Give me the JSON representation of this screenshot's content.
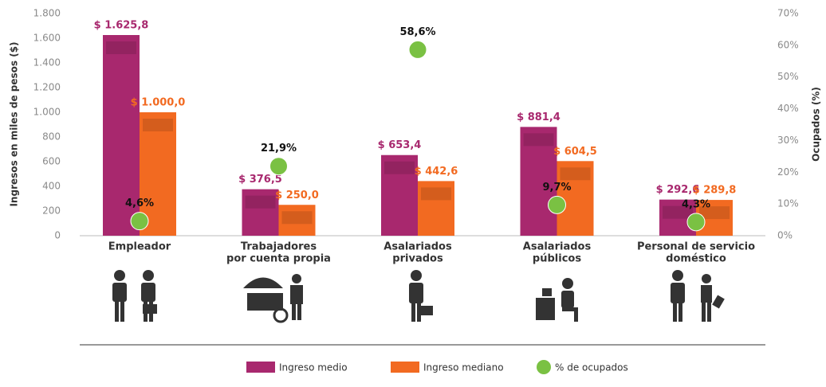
{
  "chart_data": {
    "type": "bar",
    "y_label": "Ingresos en miles de pesos ($)",
    "y2_label": "Ocupados (%)",
    "categories": [
      [
        "Empleador"
      ],
      [
        "Trabajadores",
        "por cuenta propia"
      ],
      [
        "Asalariados",
        "privados"
      ],
      [
        "Asalariados",
        "públicos"
      ],
      [
        "Personal de servicio",
        "doméstico"
      ]
    ],
    "series": [
      {
        "name": "Ingreso medio",
        "color": "#a8286e",
        "type": "bar",
        "values": [
          1625.8,
          376.5,
          653.4,
          881.4,
          292.6
        ],
        "value_labels": [
          "$ 1.625,8",
          "$ 376,5",
          "$ 653,4",
          "$ 881,4",
          "$ 292,6"
        ]
      },
      {
        "name": "Ingreso mediano",
        "color": "#f26a21",
        "type": "bar",
        "values": [
          1000.0,
          250.0,
          442.6,
          604.5,
          289.8
        ],
        "value_labels": [
          "$ 1.000,0",
          "$ 250,0",
          "$ 442,6",
          "$ 604,5",
          "$ 289,8"
        ]
      },
      {
        "name": "% de ocupados",
        "color": "#7ac143",
        "type": "scatter",
        "axis": "y2",
        "values": [
          4.6,
          21.9,
          58.6,
          9.7,
          4.3
        ],
        "value_labels": [
          "4,6%",
          "21,9%",
          "58,6%",
          "9,7%",
          "4,3%"
        ]
      }
    ],
    "ylim": [
      0,
      1800
    ],
    "yticks": [
      0,
      200,
      400,
      600,
      800,
      {
        "value": 1000,
        "label": "1.000"
      },
      {
        "value": 1200,
        "label": "1.200"
      },
      {
        "value": 1400,
        "label": "1.400"
      },
      {
        "value": 1600,
        "label": "1.600"
      },
      {
        "value": 1800,
        "label": "1.800"
      }
    ],
    "y2lim": [
      0,
      70
    ],
    "y2ticks": [
      {
        "value": 0,
        "label": "0%"
      },
      {
        "value": 10,
        "label": "10%"
      },
      {
        "value": 20,
        "label": "20%"
      },
      {
        "value": 30,
        "label": "30%"
      },
      {
        "value": 40,
        "label": "40%"
      },
      {
        "value": 50,
        "label": "50%"
      },
      {
        "value": 60,
        "label": "60%"
      },
      {
        "value": 70,
        "label": "70%"
      }
    ]
  }
}
